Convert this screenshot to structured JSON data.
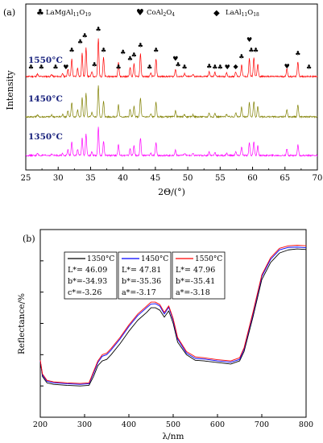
{
  "figure": {
    "panel_a_label": "(a)",
    "panel_b_label": "(b)"
  },
  "chart_data": [
    {
      "panel": "(a)",
      "type": "line",
      "xlabel": "2Θ/(°)",
      "ylabel": "Intensity",
      "xlim": [
        25,
        70
      ],
      "x_ticks": [
        25,
        30,
        35,
        40,
        45,
        50,
        55,
        60,
        65,
        70
      ],
      "grid": false,
      "legend": [
        {
          "symbol": "♣",
          "label": "LaMgAl",
          "sub1": "11",
          "mid": "O",
          "sub2": "19"
        },
        {
          "symbol": "♥",
          "label": "CoAl",
          "sub1": "2",
          "mid": "O",
          "sub2": "4"
        },
        {
          "symbol": "◆",
          "label": "LaAl",
          "sub1": "11",
          "mid": "O",
          "sub2": "18"
        }
      ],
      "series": [
        {
          "name": "1550°C",
          "color": "#ff0000",
          "offset": 2
        },
        {
          "name": "1450°C",
          "color": "#808000",
          "offset": 1
        },
        {
          "name": "1350°C",
          "color": "#ff00ff",
          "offset": 0
        }
      ],
      "peaks": [
        {
          "x": 26.8,
          "h": 0.06
        },
        {
          "x": 29.0,
          "h": 0.05
        },
        {
          "x": 30.7,
          "h": 0.07
        },
        {
          "x": 31.5,
          "h": 0.18
        },
        {
          "x": 32.1,
          "h": 0.42
        },
        {
          "x": 33.0,
          "h": 0.2
        },
        {
          "x": 33.7,
          "h": 0.55
        },
        {
          "x": 34.3,
          "h": 0.68
        },
        {
          "x": 35.2,
          "h": 0.12
        },
        {
          "x": 36.2,
          "h": 0.9
        },
        {
          "x": 37.0,
          "h": 0.45
        },
        {
          "x": 39.3,
          "h": 0.36
        },
        {
          "x": 41.1,
          "h": 0.22
        },
        {
          "x": 41.7,
          "h": 0.3
        },
        {
          "x": 42.7,
          "h": 0.55
        },
        {
          "x": 44.3,
          "h": 0.08
        },
        {
          "x": 45.1,
          "h": 0.42
        },
        {
          "x": 48.1,
          "h": 0.18
        },
        {
          "x": 49.5,
          "h": 0.07
        },
        {
          "x": 50.8,
          "h": 0.06
        },
        {
          "x": 53.3,
          "h": 0.12
        },
        {
          "x": 54.2,
          "h": 0.1
        },
        {
          "x": 56.0,
          "h": 0.08
        },
        {
          "x": 57.4,
          "h": 0.12
        },
        {
          "x": 58.3,
          "h": 0.28
        },
        {
          "x": 59.5,
          "h": 0.42
        },
        {
          "x": 60.2,
          "h": 0.45
        },
        {
          "x": 60.8,
          "h": 0.3
        },
        {
          "x": 65.3,
          "h": 0.2
        },
        {
          "x": 67.0,
          "h": 0.35
        }
      ],
      "peak_markers": [
        {
          "x": 25.8,
          "symbol": "♣",
          "level": 0.1
        },
        {
          "x": 27.4,
          "symbol": "♣",
          "level": 0.1
        },
        {
          "x": 29.6,
          "symbol": "♣",
          "level": 0.1
        },
        {
          "x": 31.2,
          "symbol": "♥",
          "level": 0.1
        },
        {
          "x": 32.1,
          "symbol": "♣",
          "level": 0.5
        },
        {
          "x": 33.4,
          "symbol": "♣",
          "level": 0.7
        },
        {
          "x": 34.1,
          "symbol": "♣",
          "level": 0.85
        },
        {
          "x": 35.6,
          "symbol": "♣",
          "level": 0.15
        },
        {
          "x": 36.2,
          "symbol": "♣",
          "level": 1.0
        },
        {
          "x": 37.0,
          "symbol": "♣",
          "level": 0.5
        },
        {
          "x": 39.3,
          "symbol": "♣",
          "level": 0.1
        },
        {
          "x": 40.0,
          "symbol": "♣",
          "level": 0.45
        },
        {
          "x": 41.1,
          "symbol": "♣",
          "level": 0.3
        },
        {
          "x": 41.7,
          "symbol": "♣",
          "level": 0.38
        },
        {
          "x": 42.7,
          "symbol": "♣",
          "level": 0.62
        },
        {
          "x": 44.1,
          "symbol": "♣",
          "level": 0.1
        },
        {
          "x": 45.1,
          "symbol": "♣",
          "level": 0.5
        },
        {
          "x": 48.1,
          "symbol": "♥",
          "level": 0.3
        },
        {
          "x": 48.5,
          "symbol": "♣",
          "level": 0.15
        },
        {
          "x": 49.5,
          "symbol": "♣",
          "level": 0.1
        },
        {
          "x": 53.3,
          "symbol": "♣",
          "level": 0.12
        },
        {
          "x": 54.2,
          "symbol": "♣",
          "level": 0.1
        },
        {
          "x": 55.0,
          "symbol": "♣",
          "level": 0.1
        },
        {
          "x": 56.1,
          "symbol": "♥",
          "level": 0.1
        },
        {
          "x": 57.4,
          "symbol": "◆",
          "level": 0.12
        },
        {
          "x": 58.3,
          "symbol": "♣",
          "level": 0.35
        },
        {
          "x": 59.5,
          "symbol": "♥",
          "level": 0.75
        },
        {
          "x": 59.8,
          "symbol": "♣",
          "level": 0.5
        },
        {
          "x": 60.5,
          "symbol": "♣",
          "level": 0.5
        },
        {
          "x": 65.3,
          "symbol": "♥",
          "level": 0.12
        },
        {
          "x": 67.0,
          "symbol": "♣",
          "level": 0.42
        },
        {
          "x": 68.7,
          "symbol": "♣",
          "level": 0.1
        }
      ]
    },
    {
      "panel": "(b)",
      "type": "line",
      "xlabel": "λ/nm",
      "ylabel": "Reflectance/%",
      "xlim": [
        200,
        800
      ],
      "ylim": [
        0,
        60
      ],
      "x_ticks": [
        200,
        300,
        400,
        500,
        600,
        700,
        800
      ],
      "y_ticks": [
        0,
        10,
        20,
        30,
        40,
        50,
        60
      ],
      "grid": false,
      "legend_placement": "top",
      "legend": [
        {
          "name": "1350°C",
          "color": "#000000",
          "values": [
            "L*= 46.09",
            "b*=-34.93",
            "c*=-3.26"
          ]
        },
        {
          "name": "1450°C",
          "color": "#0000ff",
          "values": [
            "L*= 47.81",
            "b*=-35.36",
            "a*=-3.17"
          ]
        },
        {
          "name": "1550°C",
          "color": "#ff0000",
          "values": [
            "L*= 47.96",
            "b*=-35.41",
            "a*=-3.18"
          ]
        }
      ],
      "series": [
        {
          "name": "1350°C",
          "color": "#000000",
          "x": [
            200,
            205,
            215,
            230,
            260,
            290,
            310,
            320,
            330,
            340,
            350,
            360,
            380,
            400,
            420,
            440,
            450,
            460,
            470,
            480,
            490,
            500,
            510,
            530,
            550,
            570,
            600,
            630,
            650,
            660,
            680,
            700,
            720,
            740,
            760,
            780,
            800
          ],
          "y": [
            18,
            13,
            11,
            10.5,
            10.2,
            10,
            10.2,
            13,
            16.5,
            18,
            18.5,
            20,
            23.5,
            27.5,
            31,
            33.5,
            35,
            35,
            34.2,
            32,
            34,
            30,
            24,
            20,
            18.2,
            18,
            17.5,
            17,
            18,
            21,
            32,
            44,
            49.5,
            52.5,
            53.5,
            53.8,
            53.6
          ]
        },
        {
          "name": "1450°C",
          "color": "#0000ff",
          "x": [
            200,
            205,
            215,
            230,
            260,
            290,
            310,
            320,
            330,
            340,
            350,
            360,
            380,
            400,
            420,
            440,
            450,
            460,
            470,
            480,
            490,
            500,
            510,
            530,
            550,
            570,
            600,
            630,
            650,
            660,
            680,
            700,
            720,
            740,
            760,
            780,
            800
          ],
          "y": [
            18,
            13.5,
            11.5,
            11,
            10.7,
            10.5,
            10.7,
            14,
            17.5,
            19.5,
            20,
            21.5,
            25,
            29,
            32.5,
            35,
            36.2,
            36.3,
            35.5,
            33,
            35.2,
            31,
            25,
            20.5,
            18.8,
            18.6,
            18,
            17.6,
            18.5,
            21.8,
            33,
            45,
            50.5,
            53.5,
            54.3,
            54.4,
            54.2
          ]
        },
        {
          "name": "1550°C",
          "color": "#ff0000",
          "x": [
            200,
            205,
            215,
            230,
            260,
            290,
            310,
            320,
            330,
            340,
            350,
            360,
            380,
            400,
            420,
            440,
            450,
            460,
            470,
            480,
            490,
            500,
            510,
            530,
            550,
            570,
            600,
            630,
            650,
            660,
            680,
            700,
            720,
            740,
            760,
            780,
            800
          ],
          "y": [
            18.2,
            13.8,
            11.8,
            11.3,
            11,
            10.8,
            11,
            14.5,
            18,
            20,
            20.5,
            22,
            25.5,
            29.5,
            33,
            35.5,
            36.8,
            36.8,
            36,
            33.5,
            35.6,
            31.5,
            25.5,
            21,
            19.3,
            19,
            18.4,
            18,
            19,
            22.2,
            33.5,
            45.5,
            51,
            54,
            54.8,
            55,
            54.8
          ]
        }
      ]
    }
  ]
}
